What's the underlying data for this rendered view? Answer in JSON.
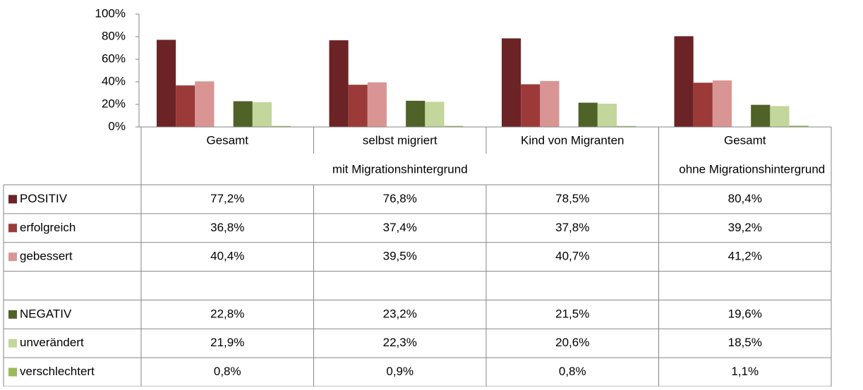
{
  "chart_data": {
    "type": "bar",
    "groups": [
      {
        "label": "mit Migrationshintergrund",
        "categories": [
          "Gesamt",
          "selbst migriert",
          "Kind von Migranten"
        ]
      },
      {
        "label": "ohne Migrationshintergrund",
        "categories": [
          "Gesamt"
        ]
      }
    ],
    "series": [
      {
        "name": "POSITIV",
        "color": "#6b2326",
        "values": [
          77.2,
          76.8,
          78.5,
          80.4
        ],
        "value_labels": [
          "77,2%",
          "76,8%",
          "78,5%",
          "80,4%"
        ]
      },
      {
        "name": "erfolgreich",
        "color": "#9c3a39",
        "values": [
          36.8,
          37.4,
          37.8,
          39.2
        ],
        "value_labels": [
          "36,8%",
          "37,4%",
          "37,8%",
          "39,2%"
        ]
      },
      {
        "name": "gebessert",
        "color": "#d99594",
        "values": [
          40.4,
          39.5,
          40.7,
          41.2
        ],
        "value_labels": [
          "40,4%",
          "39,5%",
          "40,7%",
          "41,2%"
        ]
      },
      {
        "name": "NEGATIV",
        "color": "#4f6228",
        "values": [
          22.8,
          23.2,
          21.5,
          19.6
        ],
        "value_labels": [
          "22,8%",
          "23,2%",
          "21,5%",
          "19,6%"
        ]
      },
      {
        "name": "unverändert",
        "color": "#c3d69b",
        "values": [
          21.9,
          22.3,
          20.6,
          18.5
        ],
        "value_labels": [
          "21,9%",
          "22,3%",
          "20,6%",
          "18,5%"
        ]
      },
      {
        "name": "verschlechtert",
        "color": "#9bbb59",
        "values": [
          0.8,
          0.9,
          0.8,
          1.1
        ],
        "value_labels": [
          "0,8%",
          "0,9%",
          "0,8%",
          "1,1%"
        ]
      }
    ],
    "ylim": [
      0,
      100
    ],
    "yticks": [
      {
        "value": 0,
        "label": "0%"
      },
      {
        "value": 20,
        "label": "20%"
      },
      {
        "value": 40,
        "label": "40%"
      },
      {
        "value": 60,
        "label": "60%"
      },
      {
        "value": 80,
        "label": "80%"
      },
      {
        "value": 100,
        "label": "100%"
      }
    ]
  }
}
